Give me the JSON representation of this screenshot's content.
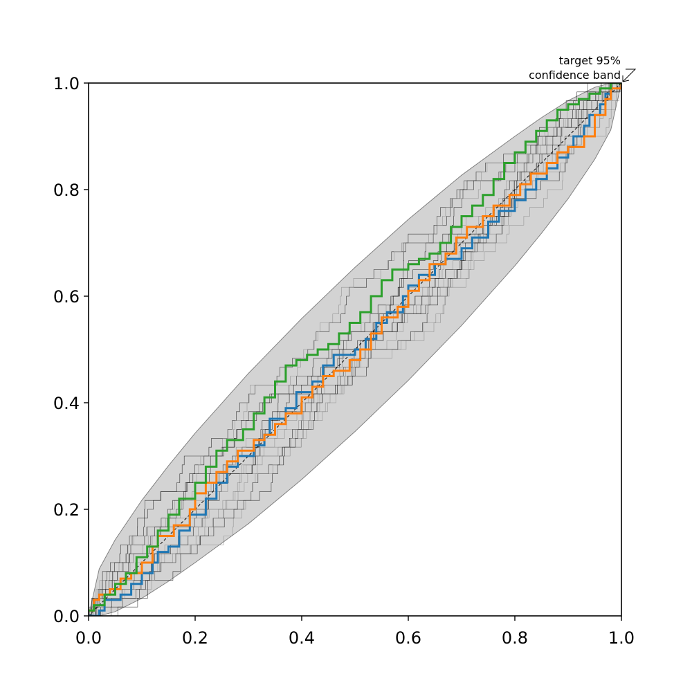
{
  "chart_data": {
    "type": "line",
    "title": "",
    "xlabel": "",
    "ylabel": "",
    "xlim": [
      0.0,
      1.0
    ],
    "ylim": [
      0.0,
      1.0
    ],
    "xticks": [
      "0.0",
      "0.2",
      "0.4",
      "0.6",
      "0.8",
      "1.0"
    ],
    "yticks": [
      "0.0",
      "0.2",
      "0.4",
      "0.6",
      "0.8",
      "1.0"
    ],
    "grid": false,
    "annotation": {
      "line1": "target 95%",
      "line2": "confidence band"
    },
    "confidence_band": {
      "color": "#d3d3d3",
      "edge_color": "#808080",
      "x": [
        0.0,
        0.02,
        0.05,
        0.1,
        0.15,
        0.2,
        0.3,
        0.4,
        0.5,
        0.6,
        0.7,
        0.8,
        0.85,
        0.9,
        0.95,
        0.98,
        1.0
      ],
      "lower": [
        0.0,
        0.0,
        0.008,
        0.033,
        0.065,
        0.1,
        0.173,
        0.256,
        0.346,
        0.442,
        0.545,
        0.657,
        0.718,
        0.783,
        0.857,
        0.912,
        1.0
      ],
      "upper": [
        0.0,
        0.088,
        0.143,
        0.217,
        0.282,
        0.343,
        0.455,
        0.558,
        0.654,
        0.744,
        0.827,
        0.9,
        0.935,
        0.967,
        0.992,
        1.0,
        1.0
      ]
    },
    "reference_line": {
      "x": [
        0,
        1
      ],
      "y": [
        0,
        1
      ],
      "color": "#000000",
      "style": "dashed"
    },
    "background_samples": {
      "count": 15,
      "seed": 12345,
      "colors": [
        "#000000",
        "#7f7f7f"
      ]
    },
    "series": [
      {
        "color": "#1f77b4",
        "x": [
          0.0,
          0.02,
          0.03,
          0.06,
          0.08,
          0.1,
          0.12,
          0.13,
          0.15,
          0.17,
          0.19,
          0.22,
          0.24,
          0.26,
          0.28,
          0.31,
          0.33,
          0.34,
          0.37,
          0.39,
          0.42,
          0.44,
          0.46,
          0.5,
          0.52,
          0.54,
          0.56,
          0.59,
          0.6,
          0.62,
          0.65,
          0.67,
          0.7,
          0.72,
          0.75,
          0.77,
          0.8,
          0.82,
          0.84,
          0.86,
          0.88,
          0.9,
          0.91,
          0.93,
          0.94,
          0.96,
          0.97,
          0.98,
          1.0
        ],
        "y": [
          0.0,
          0.01,
          0.03,
          0.04,
          0.06,
          0.08,
          0.1,
          0.12,
          0.13,
          0.16,
          0.19,
          0.22,
          0.25,
          0.28,
          0.3,
          0.32,
          0.34,
          0.37,
          0.39,
          0.42,
          0.44,
          0.47,
          0.49,
          0.5,
          0.52,
          0.55,
          0.57,
          0.6,
          0.62,
          0.64,
          0.66,
          0.67,
          0.69,
          0.71,
          0.74,
          0.76,
          0.78,
          0.8,
          0.82,
          0.84,
          0.86,
          0.88,
          0.9,
          0.92,
          0.94,
          0.96,
          0.98,
          1.0,
          1.0
        ]
      },
      {
        "color": "#ff7f0e",
        "x": [
          0.0,
          0.01,
          0.02,
          0.04,
          0.06,
          0.08,
          0.1,
          0.12,
          0.13,
          0.16,
          0.19,
          0.2,
          0.22,
          0.24,
          0.26,
          0.28,
          0.31,
          0.33,
          0.35,
          0.37,
          0.4,
          0.42,
          0.44,
          0.46,
          0.49,
          0.51,
          0.53,
          0.55,
          0.58,
          0.6,
          0.62,
          0.64,
          0.67,
          0.69,
          0.71,
          0.74,
          0.76,
          0.79,
          0.81,
          0.83,
          0.86,
          0.88,
          0.9,
          0.93,
          0.95,
          0.97,
          0.98,
          1.0
        ],
        "y": [
          0.01,
          0.03,
          0.04,
          0.05,
          0.07,
          0.08,
          0.1,
          0.13,
          0.15,
          0.17,
          0.2,
          0.23,
          0.25,
          0.27,
          0.29,
          0.31,
          0.33,
          0.34,
          0.36,
          0.38,
          0.41,
          0.43,
          0.45,
          0.46,
          0.48,
          0.5,
          0.53,
          0.56,
          0.58,
          0.61,
          0.63,
          0.66,
          0.68,
          0.71,
          0.73,
          0.75,
          0.77,
          0.79,
          0.81,
          0.83,
          0.85,
          0.87,
          0.88,
          0.9,
          0.94,
          0.97,
          0.99,
          1.0
        ]
      },
      {
        "color": "#2ca02c",
        "x": [
          0.0,
          0.01,
          0.03,
          0.05,
          0.07,
          0.09,
          0.11,
          0.13,
          0.15,
          0.17,
          0.2,
          0.22,
          0.24,
          0.26,
          0.29,
          0.31,
          0.33,
          0.35,
          0.37,
          0.39,
          0.41,
          0.43,
          0.45,
          0.47,
          0.49,
          0.51,
          0.53,
          0.55,
          0.57,
          0.6,
          0.62,
          0.64,
          0.66,
          0.68,
          0.7,
          0.72,
          0.74,
          0.76,
          0.78,
          0.8,
          0.82,
          0.84,
          0.86,
          0.88,
          0.9,
          0.92,
          0.94,
          0.96,
          0.98,
          1.0
        ],
        "y": [
          0.01,
          0.02,
          0.04,
          0.06,
          0.08,
          0.11,
          0.13,
          0.16,
          0.19,
          0.22,
          0.25,
          0.28,
          0.31,
          0.33,
          0.35,
          0.38,
          0.41,
          0.44,
          0.47,
          0.48,
          0.49,
          0.5,
          0.51,
          0.53,
          0.55,
          0.57,
          0.6,
          0.63,
          0.65,
          0.66,
          0.67,
          0.68,
          0.7,
          0.73,
          0.75,
          0.77,
          0.79,
          0.82,
          0.85,
          0.87,
          0.89,
          0.91,
          0.93,
          0.95,
          0.96,
          0.97,
          0.98,
          0.99,
          1.0,
          1.0
        ]
      }
    ]
  }
}
